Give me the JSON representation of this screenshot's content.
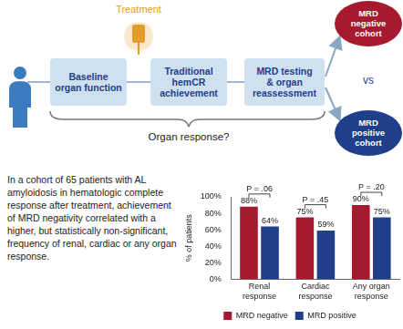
{
  "diagram": {
    "treatment_label": "Treatment",
    "boxes": [
      [
        "Baseline",
        "organ function"
      ],
      [
        "Traditional",
        "hemCR",
        "achievement"
      ],
      [
        "MRD testing",
        "& organ",
        "reassessment"
      ]
    ],
    "cohorts": [
      {
        "lines": [
          "MRD",
          "negative",
          "cohort"
        ],
        "color": "#a6192e"
      },
      {
        "lines": [
          "MRD",
          "positive",
          "cohort"
        ],
        "color": "#1f3f8a"
      }
    ],
    "vs": "vs",
    "bracket_label": "Organ response?"
  },
  "summary": "In a cohort of 65 patients with AL amyloidosis in hematologic complete response after treatment, achievement of MRD negativity correlated with a higher, but statistically non-significant, frequency of renal, cardiac or any organ response.",
  "chart_data": {
    "type": "bar",
    "categories": [
      "Renal response",
      "Cardiac response",
      "Any organ response"
    ],
    "series": [
      {
        "name": "MRD negative",
        "color": "#a6192e",
        "values": [
          88,
          75,
          90
        ],
        "value_labels": [
          "88%",
          "75%",
          "90%"
        ]
      },
      {
        "name": "MRD positive",
        "color": "#1f3f8a",
        "values": [
          64,
          59,
          75
        ],
        "value_labels": [
          "64%",
          "59%",
          "75%"
        ]
      }
    ],
    "y_label": "% of patients",
    "ylim": [
      0,
      100
    ],
    "yticks": [
      {
        "value": 0,
        "label": "0%"
      },
      {
        "value": 20,
        "label": "20%"
      },
      {
        "value": 40,
        "label": "40%"
      },
      {
        "value": 60,
        "label": "60%"
      },
      {
        "value": 80,
        "label": "80%"
      },
      {
        "value": 100,
        "label": "100%"
      }
    ],
    "grid": false,
    "legend": "bottom",
    "data_labels": true,
    "annotations": [
      {
        "category": "Renal response",
        "text": "P = .06"
      },
      {
        "category": "Cardiac response",
        "text": "P = .45"
      },
      {
        "category": "Any organ response",
        "text": "P = .20"
      }
    ]
  }
}
